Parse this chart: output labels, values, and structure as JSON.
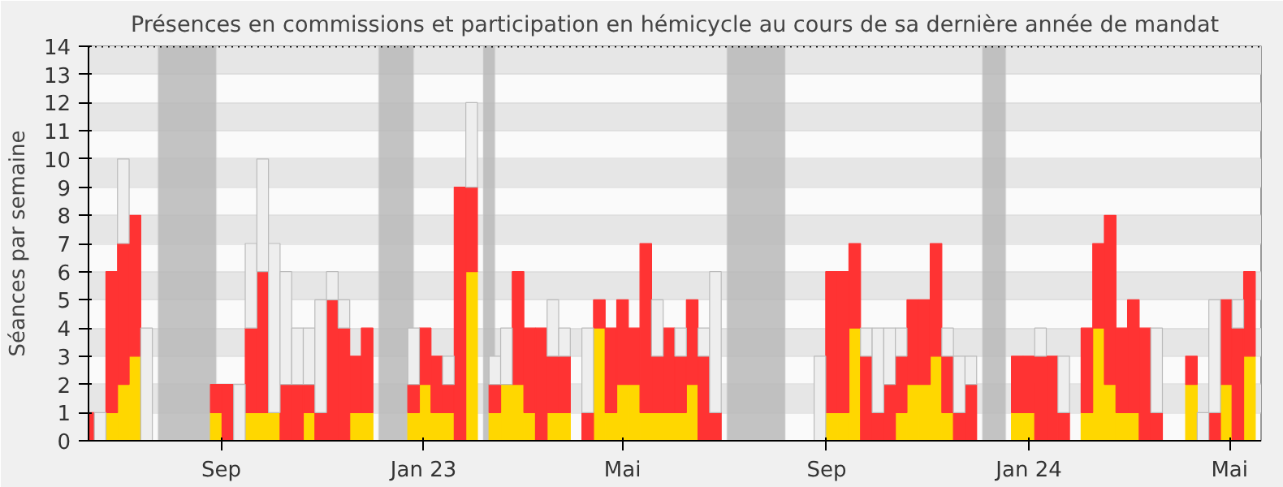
{
  "chart_data": {
    "type": "bar",
    "title": "Présences en commissions et participation en hémicycle au cours de sa dernière année de mandat",
    "ylabel": "Séances par semaine",
    "x": [
      "2022-06-13",
      "2022-06-20",
      "2022-06-27",
      "2022-07-04",
      "2022-07-11",
      "2022-07-18",
      "2022-07-25",
      "2022-08-01",
      "2022-08-08",
      "2022-08-15",
      "2022-08-22",
      "2022-08-29",
      "2022-09-05",
      "2022-09-12",
      "2022-09-19",
      "2022-09-26",
      "2022-10-03",
      "2022-10-10",
      "2022-10-17",
      "2022-10-24",
      "2022-10-31",
      "2022-11-07",
      "2022-11-14",
      "2022-11-21",
      "2022-11-28",
      "2022-12-05",
      "2022-12-12",
      "2022-12-19",
      "2022-12-26",
      "2023-01-02",
      "2023-01-09",
      "2023-01-16",
      "2023-01-23",
      "2023-01-30",
      "2023-02-06",
      "2023-02-13",
      "2023-02-20",
      "2023-02-27",
      "2023-03-06",
      "2023-03-13",
      "2023-03-20",
      "2023-03-27",
      "2023-04-03",
      "2023-04-10",
      "2023-04-17",
      "2023-04-24",
      "2023-05-01",
      "2023-05-08",
      "2023-05-15",
      "2023-05-22",
      "2023-05-29",
      "2023-06-05",
      "2023-06-12",
      "2023-06-19",
      "2023-06-26",
      "2023-07-03",
      "2023-07-10",
      "2023-07-17",
      "2023-07-24",
      "2023-07-31",
      "2023-08-07",
      "2023-08-14",
      "2023-08-21",
      "2023-08-28",
      "2023-09-04",
      "2023-09-11",
      "2023-09-18",
      "2023-09-25",
      "2023-10-02",
      "2023-10-09",
      "2023-10-16",
      "2023-10-23",
      "2023-10-30",
      "2023-11-06",
      "2023-11-13",
      "2023-11-20",
      "2023-11-27",
      "2023-12-04",
      "2023-12-11",
      "2023-12-18",
      "2023-12-25",
      "2024-01-01",
      "2024-01-08",
      "2024-01-15",
      "2024-01-22",
      "2024-01-29",
      "2024-02-05",
      "2024-02-12",
      "2024-02-19",
      "2024-02-26",
      "2024-03-04",
      "2024-03-11",
      "2024-03-18",
      "2024-03-25",
      "2024-04-01",
      "2024-04-08",
      "2024-04-15",
      "2024-04-22",
      "2024-04-29",
      "2024-05-06",
      "2024-05-13"
    ],
    "series": [
      {
        "color": "#ffd700",
        "values": [
          null,
          null,
          1,
          2,
          3,
          null,
          null,
          null,
          null,
          null,
          null,
          1,
          null,
          null,
          1,
          1,
          1,
          null,
          null,
          1,
          null,
          null,
          null,
          1,
          1,
          null,
          null,
          null,
          1,
          2,
          1,
          1,
          null,
          6,
          null,
          1,
          2,
          2,
          1,
          null,
          1,
          1,
          null,
          null,
          4,
          1,
          2,
          2,
          1,
          1,
          1,
          1,
          2,
          null,
          null,
          null,
          null,
          null,
          null,
          null,
          null,
          null,
          null,
          null,
          1,
          1,
          4,
          null,
          null,
          null,
          1,
          2,
          2,
          3,
          1,
          null,
          null,
          null,
          null,
          null,
          1,
          1,
          null,
          null,
          null,
          null,
          1,
          4,
          2,
          1,
          1,
          null,
          null,
          null,
          null,
          2,
          null,
          null,
          2,
          null,
          3
        ]
      },
      {
        "color": "#ff3333",
        "values": [
          1,
          null,
          5,
          5,
          5,
          null,
          null,
          null,
          null,
          null,
          null,
          1,
          2,
          null,
          3,
          5,
          null,
          2,
          2,
          1,
          1,
          5,
          4,
          2,
          3,
          null,
          null,
          null,
          1,
          2,
          2,
          1,
          9,
          3,
          null,
          1,
          null,
          4,
          3,
          4,
          2,
          2,
          null,
          1,
          1,
          3,
          3,
          2,
          6,
          2,
          3,
          2,
          3,
          3,
          1,
          null,
          null,
          null,
          null,
          null,
          null,
          null,
          null,
          null,
          5,
          5,
          3,
          3,
          1,
          2,
          2,
          3,
          3,
          4,
          2,
          1,
          2,
          null,
          null,
          null,
          2,
          2,
          3,
          3,
          1,
          null,
          3,
          3,
          6,
          3,
          4,
          4,
          1,
          null,
          null,
          1,
          null,
          1,
          3,
          4,
          3
        ]
      },
      {
        "color": "#eeeeee",
        "values": [
          null,
          1,
          null,
          3,
          null,
          4,
          null,
          null,
          null,
          null,
          null,
          null,
          null,
          2,
          3,
          4,
          6,
          4,
          2,
          2,
          4,
          1,
          1,
          null,
          null,
          null,
          null,
          null,
          2,
          null,
          null,
          1,
          null,
          3,
          null,
          1,
          2,
          null,
          null,
          null,
          2,
          1,
          null,
          3,
          null,
          null,
          null,
          null,
          null,
          2,
          null,
          1,
          null,
          1,
          5,
          null,
          null,
          null,
          null,
          null,
          null,
          null,
          null,
          3,
          null,
          null,
          null,
          1,
          3,
          2,
          1,
          null,
          null,
          null,
          1,
          2,
          1,
          null,
          null,
          null,
          null,
          null,
          1,
          null,
          2,
          null,
          null,
          null,
          null,
          null,
          null,
          null,
          3,
          null,
          null,
          null,
          1,
          4,
          null,
          1,
          null
        ]
      }
    ],
    "stacked": true,
    "xlim": [
      "2022-06-13",
      "2024-05-20"
    ],
    "xticks": [
      {
        "value": "2022-09-01",
        "label": "Sep"
      },
      {
        "value": "2023-01-01",
        "label": "Jan 23"
      },
      {
        "value": "2023-05-01",
        "label": "Mai"
      },
      {
        "value": "2023-09-01",
        "label": "Sep"
      },
      {
        "value": "2024-01-01",
        "label": "Jan 24"
      },
      {
        "value": "2024-05-01",
        "label": "Mai"
      }
    ],
    "ylim": [
      0,
      14
    ],
    "yticks": [
      0,
      1,
      2,
      3,
      4,
      5,
      6,
      7,
      8,
      9,
      10,
      11,
      12,
      13,
      14
    ],
    "grid": "y",
    "bands": [
      {
        "axis": "x",
        "from": "2022-07-25",
        "to": "2022-08-29",
        "color": "#b8b8b8"
      },
      {
        "axis": "x",
        "from": "2022-12-05",
        "to": "2022-12-26",
        "color": "#b8b8b8"
      },
      {
        "axis": "x",
        "from": "2023-02-06",
        "to": "2023-02-13",
        "color": "#b8b8b8"
      },
      {
        "axis": "x",
        "from": "2023-07-03",
        "to": "2023-08-07",
        "color": "#b8b8b8"
      },
      {
        "axis": "x",
        "from": "2023-12-04",
        "to": "2023-12-18",
        "color": "#b8b8b8"
      }
    ],
    "ref_lines": [
      {
        "axis": "y",
        "value": 14,
        "color": "#000000",
        "line_style": "dotted"
      }
    ]
  }
}
